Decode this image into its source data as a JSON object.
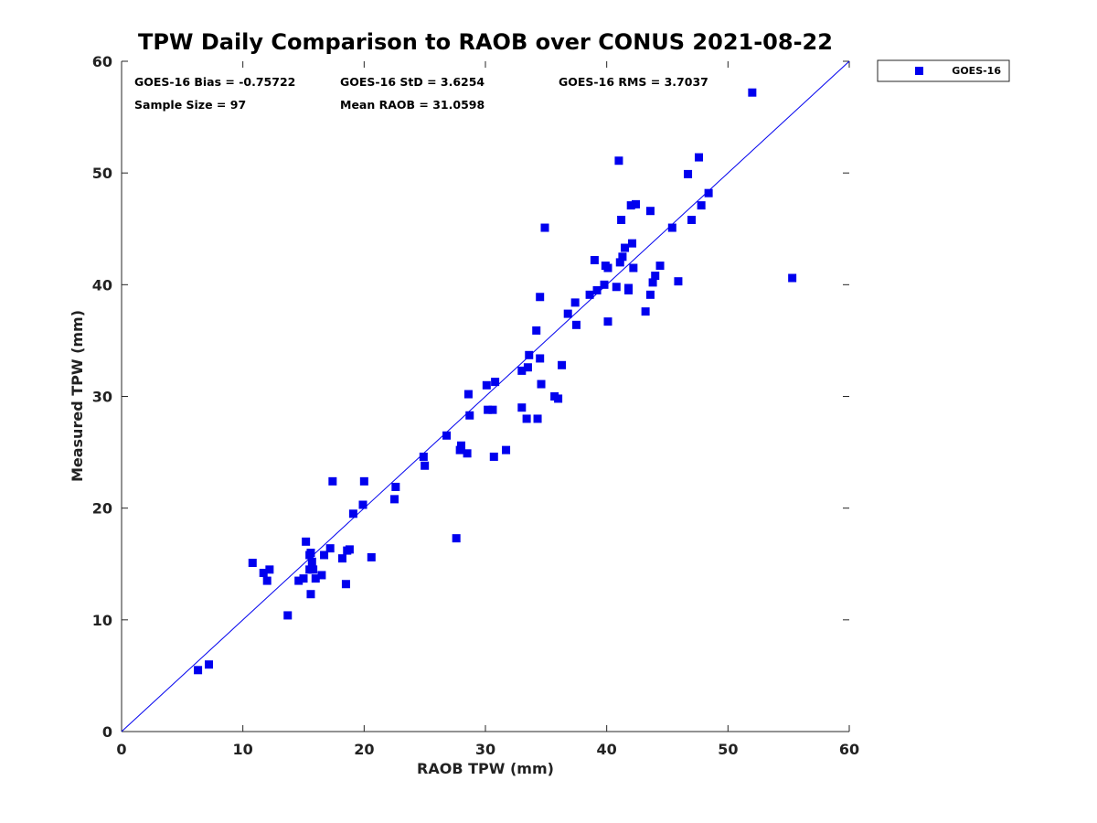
{
  "chart_data": {
    "type": "scatter",
    "title": "TPW Daily Comparison to RAOB over CONUS 2021-08-22",
    "xlabel": "RAOB TPW (mm)",
    "ylabel": "Measured TPW (mm)",
    "xlim": [
      0,
      60
    ],
    "ylim": [
      0,
      60
    ],
    "xticks": [
      "0",
      "10",
      "20",
      "30",
      "40",
      "50",
      "60"
    ],
    "yticks": [
      "0",
      "10",
      "20",
      "30",
      "40",
      "50",
      "60"
    ],
    "grid": false,
    "legend_position": "outside-top-right",
    "reference_line": "y = x",
    "stats": {
      "bias": "GOES-16 Bias = -0.75722",
      "std": "GOES-16 StD = 3.6254",
      "rms": "GOES-16 RMS = 3.7037",
      "sample_size": "Sample Size = 97",
      "mean_raob": "Mean RAOB = 31.0598"
    },
    "series": [
      {
        "name": "GOES-16",
        "color": "#0000ee",
        "marker": "square",
        "points": [
          [
            6.3,
            5.5
          ],
          [
            7.2,
            6.0
          ],
          [
            10.8,
            15.1
          ],
          [
            11.7,
            14.2
          ],
          [
            12.0,
            13.5
          ],
          [
            12.2,
            14.5
          ],
          [
            13.7,
            10.4
          ],
          [
            14.6,
            13.5
          ],
          [
            15.0,
            13.7
          ],
          [
            15.2,
            17.0
          ],
          [
            15.5,
            14.5
          ],
          [
            15.6,
            16.0
          ],
          [
            15.7,
            15.2
          ],
          [
            15.6,
            12.3
          ],
          [
            15.8,
            14.5
          ],
          [
            16.0,
            13.7
          ],
          [
            16.5,
            14.0
          ],
          [
            16.7,
            15.8
          ],
          [
            17.2,
            16.4
          ],
          [
            17.4,
            22.4
          ],
          [
            18.2,
            15.5
          ],
          [
            18.5,
            13.2
          ],
          [
            18.8,
            16.3
          ],
          [
            19.1,
            19.5
          ],
          [
            19.9,
            20.3
          ],
          [
            20.0,
            22.4
          ],
          [
            20.6,
            15.6
          ],
          [
            22.5,
            20.8
          ],
          [
            22.6,
            21.9
          ],
          [
            24.9,
            24.6
          ],
          [
            25.0,
            23.8
          ],
          [
            26.8,
            26.5
          ],
          [
            27.6,
            17.3
          ],
          [
            27.9,
            25.2
          ],
          [
            28.0,
            25.6
          ],
          [
            28.5,
            24.9
          ],
          [
            28.6,
            30.2
          ],
          [
            28.7,
            28.3
          ],
          [
            30.1,
            31.0
          ],
          [
            30.2,
            28.8
          ],
          [
            30.6,
            28.8
          ],
          [
            30.7,
            24.6
          ],
          [
            30.8,
            31.3
          ],
          [
            31.7,
            25.2
          ],
          [
            33.0,
            29.0
          ],
          [
            33.0,
            32.3
          ],
          [
            33.4,
            28.0
          ],
          [
            33.5,
            32.6
          ],
          [
            33.6,
            33.7
          ],
          [
            34.2,
            35.9
          ],
          [
            34.3,
            28.0
          ],
          [
            34.5,
            33.4
          ],
          [
            34.5,
            38.9
          ],
          [
            34.6,
            31.1
          ],
          [
            34.9,
            45.1
          ],
          [
            35.7,
            30.0
          ],
          [
            36.0,
            29.8
          ],
          [
            36.3,
            32.8
          ],
          [
            36.8,
            37.4
          ],
          [
            37.4,
            38.4
          ],
          [
            37.5,
            36.4
          ],
          [
            38.6,
            39.1
          ],
          [
            39.0,
            42.2
          ],
          [
            39.2,
            39.5
          ],
          [
            39.8,
            40.0
          ],
          [
            39.9,
            41.7
          ],
          [
            40.1,
            41.5
          ],
          [
            40.1,
            36.7
          ],
          [
            40.8,
            39.8
          ],
          [
            41.0,
            51.1
          ],
          [
            41.1,
            42.0
          ],
          [
            41.2,
            45.8
          ],
          [
            41.3,
            42.5
          ],
          [
            41.5,
            43.3
          ],
          [
            41.8,
            39.5
          ],
          [
            41.8,
            39.7
          ],
          [
            42.0,
            47.1
          ],
          [
            42.1,
            43.7
          ],
          [
            42.2,
            41.5
          ],
          [
            42.4,
            47.2
          ],
          [
            43.2,
            37.6
          ],
          [
            43.6,
            39.1
          ],
          [
            43.6,
            46.6
          ],
          [
            43.8,
            40.2
          ],
          [
            44.0,
            40.8
          ],
          [
            44.4,
            41.7
          ],
          [
            45.4,
            45.1
          ],
          [
            45.9,
            40.3
          ],
          [
            46.7,
            49.9
          ],
          [
            47.0,
            45.8
          ],
          [
            47.6,
            51.4
          ],
          [
            47.8,
            47.1
          ],
          [
            48.4,
            48.2
          ],
          [
            52.0,
            57.2
          ],
          [
            55.3,
            40.6
          ],
          [
            15.5,
            15.8
          ],
          [
            18.6,
            16.2
          ]
        ]
      }
    ]
  }
}
